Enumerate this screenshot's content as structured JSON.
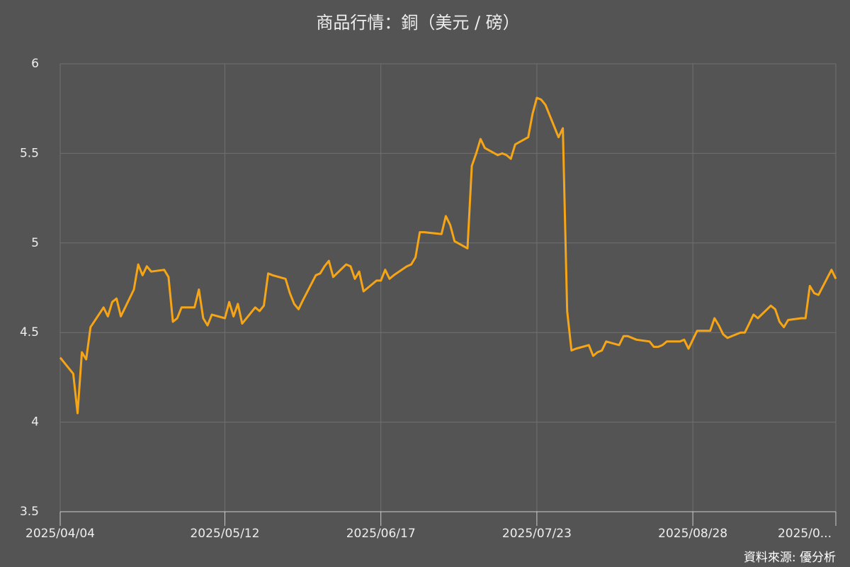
{
  "chart_data": {
    "type": "line",
    "title": "商品行情：銅（美元 / 磅）",
    "source": "資料來源: 優分析",
    "x": [
      "2025-04-04",
      "2025-04-07",
      "2025-04-08",
      "2025-04-09",
      "2025-04-10",
      "2025-04-11",
      "2025-04-14",
      "2025-04-15",
      "2025-04-16",
      "2025-04-17",
      "2025-04-18",
      "2025-04-21",
      "2025-04-22",
      "2025-04-23",
      "2025-04-24",
      "2025-04-25",
      "2025-04-28",
      "2025-04-29",
      "2025-04-30",
      "2025-05-01",
      "2025-05-02",
      "2025-05-05",
      "2025-05-06",
      "2025-05-07",
      "2025-05-08",
      "2025-05-09",
      "2025-05-12",
      "2025-05-13",
      "2025-05-14",
      "2025-05-15",
      "2025-05-16",
      "2025-05-19",
      "2025-05-20",
      "2025-05-21",
      "2025-05-22",
      "2025-05-23",
      "2025-05-26",
      "2025-05-27",
      "2025-05-28",
      "2025-05-29",
      "2025-05-30",
      "2025-06-02",
      "2025-06-03",
      "2025-06-04",
      "2025-06-05",
      "2025-06-06",
      "2025-06-09",
      "2025-06-10",
      "2025-06-11",
      "2025-06-12",
      "2025-06-13",
      "2025-06-16",
      "2025-06-17",
      "2025-06-18",
      "2025-06-19",
      "2025-06-20",
      "2025-06-23",
      "2025-06-24",
      "2025-06-25",
      "2025-06-26",
      "2025-06-27",
      "2025-07-01",
      "2025-07-02",
      "2025-07-03",
      "2025-07-04",
      "2025-07-07",
      "2025-07-08",
      "2025-07-09",
      "2025-07-10",
      "2025-07-11",
      "2025-07-14",
      "2025-07-15",
      "2025-07-16",
      "2025-07-17",
      "2025-07-18",
      "2025-07-21",
      "2025-07-22",
      "2025-07-23",
      "2025-07-24",
      "2025-07-25",
      "2025-07-28",
      "2025-07-29",
      "2025-07-30",
      "2025-07-31",
      "2025-08-01",
      "2025-08-04",
      "2025-08-05",
      "2025-08-06",
      "2025-08-07",
      "2025-08-08",
      "2025-08-11",
      "2025-08-12",
      "2025-08-13",
      "2025-08-14",
      "2025-08-15",
      "2025-08-18",
      "2025-08-19",
      "2025-08-20",
      "2025-08-21",
      "2025-08-22",
      "2025-08-25",
      "2025-08-26",
      "2025-08-27",
      "2025-08-28",
      "2025-08-29",
      "2025-09-01",
      "2025-09-02",
      "2025-09-03",
      "2025-09-04",
      "2025-09-05",
      "2025-09-08",
      "2025-09-09",
      "2025-09-10",
      "2025-09-11",
      "2025-09-12",
      "2025-09-15",
      "2025-09-16",
      "2025-09-17",
      "2025-09-18",
      "2025-09-19",
      "2025-09-22",
      "2025-09-23",
      "2025-09-24",
      "2025-09-25",
      "2025-09-26",
      "2025-09-29",
      "2025-09-30"
    ],
    "series": [
      {
        "color": "#f5a516",
        "values": [
          4.36,
          4.27,
          4.05,
          4.39,
          4.35,
          4.53,
          4.64,
          4.59,
          4.67,
          4.69,
          4.59,
          4.74,
          4.88,
          4.82,
          4.87,
          4.84,
          4.85,
          4.81,
          4.56,
          4.58,
          4.64,
          4.64,
          4.74,
          4.58,
          4.54,
          4.6,
          4.58,
          4.67,
          4.59,
          4.66,
          4.55,
          4.64,
          4.62,
          4.65,
          4.83,
          4.82,
          4.8,
          4.72,
          4.66,
          4.63,
          4.68,
          4.82,
          4.83,
          4.87,
          4.9,
          4.81,
          4.88,
          4.87,
          4.8,
          4.84,
          4.73,
          4.79,
          4.79,
          4.85,
          4.8,
          4.82,
          4.87,
          4.88,
          4.92,
          5.06,
          5.06,
          5.05,
          5.15,
          5.1,
          5.01,
          4.97,
          5.43,
          5.5,
          5.58,
          5.53,
          5.49,
          5.5,
          5.49,
          5.47,
          5.55,
          5.59,
          5.72,
          5.81,
          5.8,
          5.77,
          5.59,
          5.64,
          4.62,
          4.4,
          4.41,
          4.43,
          4.37,
          4.39,
          4.4,
          4.45,
          4.43,
          4.48,
          4.48,
          4.47,
          4.46,
          4.45,
          4.42,
          4.42,
          4.43,
          4.45,
          4.45,
          4.46,
          4.41,
          4.46,
          4.51,
          4.51,
          4.58,
          4.54,
          4.49,
          4.47,
          4.5,
          4.5,
          4.55,
          4.6,
          4.58,
          4.65,
          4.63,
          4.56,
          4.53,
          4.57,
          4.58,
          4.58,
          4.76,
          4.72,
          4.71,
          4.85,
          4.8
        ]
      }
    ],
    "xlim": [
      "2025-04-04",
      "2025-09-30"
    ],
    "xticks": [
      {
        "value": "2025-04-04",
        "label": "2025/04/04"
      },
      {
        "value": "2025-05-12",
        "label": "2025/05/12"
      },
      {
        "value": "2025-06-17",
        "label": "2025/06/17"
      },
      {
        "value": "2025-07-23",
        "label": "2025/07/23"
      },
      {
        "value": "2025-08-28",
        "label": "2025/08/28"
      },
      {
        "value": "2025-09-30",
        "label": "2025/0..."
      }
    ],
    "ylim": [
      3.5,
      6
    ],
    "yticks": [
      3.5,
      4,
      4.5,
      5,
      5.5,
      6
    ],
    "grid": true
  }
}
